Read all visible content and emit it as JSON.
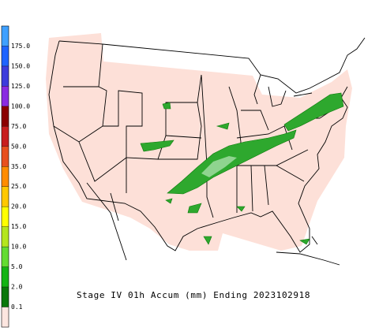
{
  "legend": {
    "labels": [
      "175.0",
      "150.0",
      "125.0",
      "100.0",
      "75.0",
      "50.0",
      "35.0",
      "25.0",
      "20.0",
      "15.0",
      "10.0",
      "5.0",
      "2.0",
      "0.1"
    ],
    "colors": [
      "#3fa0ff",
      "#1e64ff",
      "#3c3cdc",
      "#8a2be2",
      "#8b0000",
      "#c81e1e",
      "#e8501e",
      "#ff8c00",
      "#ffc800",
      "#ffff00",
      "#b4e61e",
      "#64dc32",
      "#14b414",
      "#0a780a",
      "#fde6e0"
    ]
  },
  "caption": "Stage IV 01h Accum (mm) Ending 2023102918"
}
